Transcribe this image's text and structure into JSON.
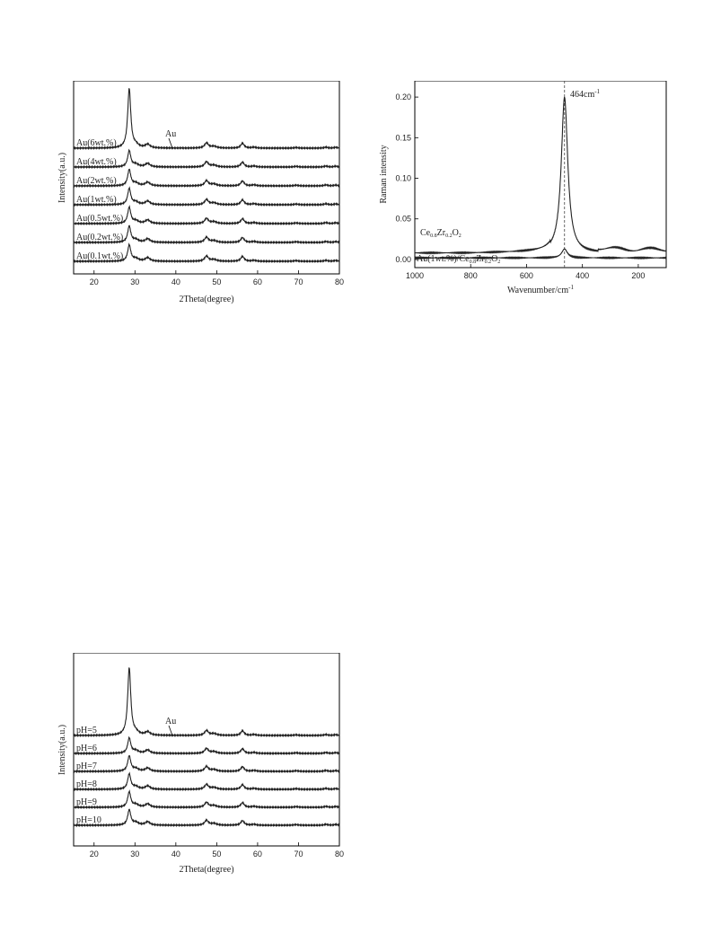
{
  "chart_data": [
    {
      "type": "line",
      "xlabel": "2Theta(degree)",
      "ylabel": "Intensity(a.u.)",
      "xlim": [
        15,
        80
      ],
      "xticks": [
        20,
        30,
        40,
        50,
        60,
        70,
        80
      ],
      "annotation": "Au",
      "series": [
        {
          "name": "Au(6wt.%)"
        },
        {
          "name": "Au(4wt.%)"
        },
        {
          "name": "Au(2wt.%)"
        },
        {
          "name": "Au(1wt.%)"
        },
        {
          "name": "Au(0.5wt.%)"
        },
        {
          "name": "Au(0.2wt.%)"
        },
        {
          "name": "Au(0.1wt.%)"
        }
      ],
      "peaks_2theta": [
        28.6,
        33.1,
        47.5,
        56.3,
        59.1,
        69.4,
        76.7,
        79.1
      ],
      "au_peak_2theta": 38.2
    },
    {
      "type": "line",
      "xlabel": "Wavenumber/cm",
      "xlabel_sup": "-1",
      "ylabel": "Raman intensity",
      "xlim": [
        1000,
        100
      ],
      "ylim": [
        -0.01,
        0.22
      ],
      "xticks": [
        1000,
        800,
        600,
        400,
        200
      ],
      "yticks": [
        "0.00",
        "0.05",
        "0.10",
        "0.15",
        "0.20"
      ],
      "annotation": "464cm",
      "annotation_sup": "-1",
      "peak_x": 464,
      "series": [
        {
          "name_parts": [
            "Ce",
            "0.8",
            "Zr",
            "0.2",
            "O",
            "2"
          ],
          "baseline": 0.008,
          "peak": 0.2
        },
        {
          "name_parts": [
            "Au(1wt.%)/Ce",
            "0.8",
            "Zr",
            "0.2",
            "O",
            "2"
          ],
          "baseline": 0.002,
          "peak": 0.013
        }
      ]
    },
    {
      "type": "line",
      "xlabel": "2Theta(degree)",
      "ylabel": "Intensity(a.u.)",
      "xlim": [
        15,
        80
      ],
      "xticks": [
        20,
        30,
        40,
        50,
        60,
        70,
        80
      ],
      "annotation": "Au",
      "series": [
        {
          "name": "pH=5"
        },
        {
          "name": "pH=6"
        },
        {
          "name": "pH=7"
        },
        {
          "name": "pH=8"
        },
        {
          "name": "pH=9"
        },
        {
          "name": "pH=10"
        }
      ],
      "peaks_2theta": [
        28.6,
        33.1,
        47.5,
        56.3,
        59.1,
        69.4,
        76.7,
        79.1
      ],
      "au_peak_2theta": 38.2
    }
  ]
}
